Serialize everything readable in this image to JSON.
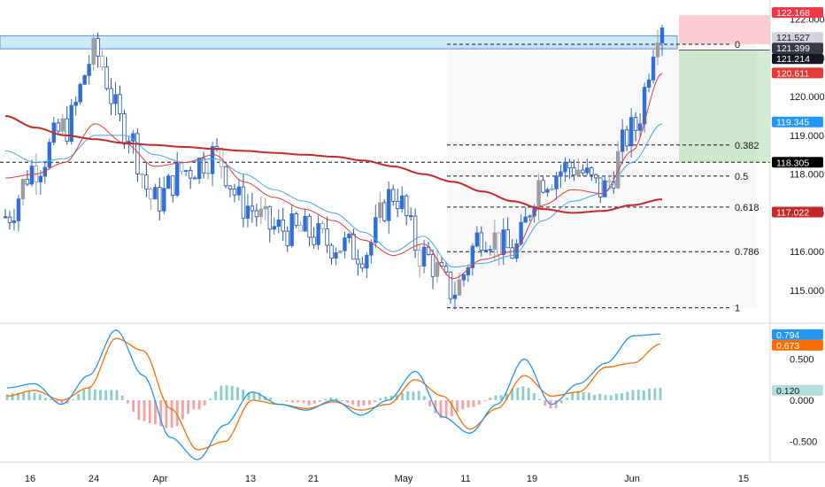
{
  "chart_data": [
    {
      "type": "candlestick",
      "title": "",
      "x_tick_labels": [
        "16",
        "24",
        "Apr",
        "13",
        "21",
        "May",
        "11",
        "19",
        "Jun",
        "15"
      ],
      "y_ticks": [
        115.0,
        116.0,
        117.0,
        118.0,
        119.0,
        120.0,
        121.0,
        122.0
      ],
      "ylim": [
        114.2,
        122.4
      ],
      "grid": false,
      "ma_200": {
        "name": "",
        "color": "#c62828",
        "values": [
          119.5,
          119.2,
          119.0,
          118.9,
          118.8,
          118.75,
          118.7,
          118.65,
          118.6,
          118.55,
          118.5,
          118.45,
          118.35,
          118.2,
          118.0,
          117.8,
          117.55,
          117.3,
          117.1,
          117.0,
          117.05,
          117.2,
          117.35
        ]
      },
      "ma_fast": {
        "color": "#e53935",
        "values": [
          117.9,
          118.0,
          118.3,
          119.3,
          118.8,
          118.2,
          118.3,
          118.5,
          117.8,
          117.4,
          117.1,
          116.8,
          116.3,
          115.9,
          116.2,
          115.3,
          115.8,
          116.0,
          117.2,
          117.6,
          117.5,
          118.6,
          120.6
        ]
      },
      "ma_slow": {
        "color": "#42a5f5",
        "values": [
          118.6,
          118.3,
          118.4,
          119.0,
          119.0,
          118.5,
          118.3,
          118.4,
          118.0,
          117.6,
          117.3,
          117.0,
          116.5,
          116.0,
          116.4,
          115.6,
          115.7,
          115.9,
          116.8,
          117.3,
          117.5,
          118.3,
          119.3
        ]
      },
      "close": [
        116.9,
        118.2,
        119.2,
        121.1,
        119.2,
        117.3,
        118.1,
        118.5,
        117.2,
        116.6,
        116.5,
        116.2,
        116.0,
        117.5,
        115.9,
        115.0,
        116.5,
        116.0,
        117.9,
        118.2,
        117.6,
        119.1,
        122.0
      ],
      "fib_levels": [
        {
          "label": "0",
          "price": 121.35
        },
        {
          "label": "0.382",
          "price": 118.75
        },
        {
          "label": "0.5",
          "price": 117.95
        },
        {
          "label": "0.618",
          "price": 117.15
        },
        {
          "label": "0.786",
          "price": 116.0
        },
        {
          "label": "1",
          "price": 114.55
        }
      ],
      "horizontal_line_price": 118.305,
      "resistance_zone": [
        121.3,
        121.5
      ],
      "risk_zone": [
        121.35,
        122.1
      ],
      "reward_zone": [
        118.3,
        121.2
      ],
      "price_tags": [
        {
          "text": "122.168",
          "bg": "#f23645",
          "fg": "#ffffff"
        },
        {
          "text": "121.527",
          "bg": "#d1d4dc",
          "fg": "#131722"
        },
        {
          "text": "121.399",
          "bg": "#363a45",
          "fg": "#ffffff"
        },
        {
          "text": "121.214",
          "bg": "#131722",
          "fg": "#ffffff"
        },
        {
          "text": "120.611",
          "bg": "#e53935",
          "fg": "#ffffff"
        },
        {
          "text": "119.345",
          "bg": "#2196f3",
          "fg": "#ffffff"
        },
        {
          "text": "118.305",
          "bg": "#000000",
          "fg": "#ffffff"
        },
        {
          "text": "117.022",
          "bg": "#c62828",
          "fg": "#ffffff"
        }
      ]
    },
    {
      "type": "macd",
      "y_ticks": [
        0.5,
        0.0,
        -0.5
      ],
      "ylim": [
        -0.75,
        0.9
      ],
      "macd_color": "#2196f3",
      "signal_color": "#ff6d00",
      "macd": [
        0.15,
        0.2,
        -0.05,
        0.3,
        0.85,
        0.3,
        -0.45,
        -0.72,
        -0.3,
        0.1,
        -0.05,
        -0.12,
        0.0,
        -0.18,
        0.0,
        0.35,
        -0.2,
        -0.4,
        -0.05,
        0.5,
        -0.05,
        0.2,
        0.45,
        0.78,
        0.8
      ],
      "signal": [
        0.05,
        0.12,
        0.0,
        0.15,
        0.75,
        0.6,
        -0.1,
        -0.6,
        -0.5,
        0.0,
        -0.05,
        -0.1,
        -0.02,
        -0.12,
        -0.05,
        0.25,
        0.05,
        -0.35,
        -0.1,
        0.3,
        0.05,
        0.1,
        0.4,
        0.45,
        0.68
      ],
      "histogram": [
        0.08,
        0.1,
        -0.05,
        0.15,
        0.12,
        -0.25,
        -0.35,
        -0.1,
        0.18,
        0.1,
        0.0,
        -0.05,
        0.02,
        -0.08,
        0.04,
        0.12,
        -0.22,
        -0.08,
        0.06,
        0.18,
        -0.1,
        0.1,
        0.06,
        0.12,
        0.14
      ],
      "value_tags": [
        {
          "text": "0.794",
          "bg": "#2196f3",
          "fg": "#ffffff"
        },
        {
          "text": "0.673",
          "bg": "#ff6d00",
          "fg": "#ffffff"
        },
        {
          "text": "0.120",
          "bg": "#b2dfdb",
          "fg": "#131722"
        }
      ]
    }
  ]
}
